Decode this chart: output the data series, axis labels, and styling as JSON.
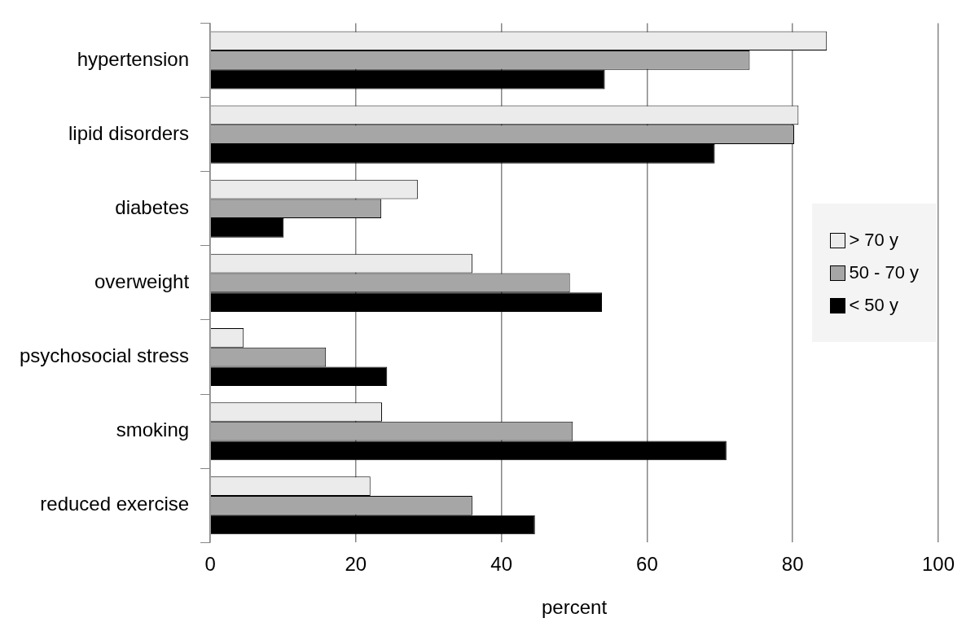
{
  "chart_data": {
    "type": "bar",
    "orientation": "horizontal",
    "xlabel": "percent",
    "categories": [
      "hypertension",
      "lipid disorders",
      "diabetes",
      "overweight",
      "psychosocial stress",
      "smoking",
      "reduced exercise"
    ],
    "series": [
      {
        "name": "> 70 y",
        "color": "#ebebeb",
        "values": [
          84.7,
          80.8,
          28.5,
          36,
          4.6,
          23.6,
          22
        ]
      },
      {
        "name": "50 - 70 y",
        "color": "#a6a6a6",
        "values": [
          74.1,
          80.2,
          23.5,
          49.4,
          15.9,
          49.8,
          36
        ]
      },
      {
        "name": "< 50 y",
        "color": "#000000",
        "values": [
          54.2,
          69.3,
          10.1,
          53.8,
          24.3,
          70.9,
          44.6
        ]
      }
    ],
    "xlim": [
      0,
      100
    ],
    "xticks": [
      0,
      20,
      40,
      60,
      80,
      100
    ],
    "grid": "x",
    "legend": "right"
  }
}
